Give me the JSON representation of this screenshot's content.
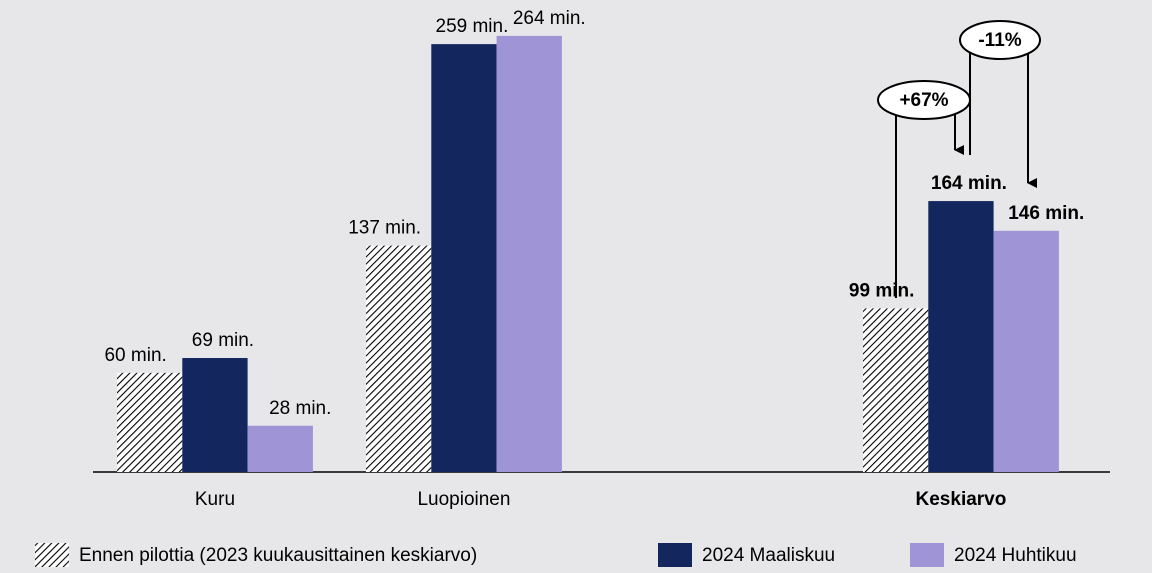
{
  "chart_data": {
    "type": "bar",
    "categories": [
      "Kuru",
      "Luopioinen",
      "Keskiarvo"
    ],
    "series": [
      {
        "name": "Ennen pilottia (2023 kuukausittainen keskiarvo)",
        "color": "#000000",
        "pattern": "hatch",
        "values": [
          60,
          137,
          99
        ],
        "value_labels": [
          "60 min.",
          "137 min.",
          "99 min."
        ]
      },
      {
        "name": "2024 Maaliskuu",
        "color": "#13265e",
        "values": [
          69,
          259,
          164
        ],
        "value_labels": [
          "69 min.",
          "259 min.",
          "164 min."
        ]
      },
      {
        "name": "2024 Huhtikuu",
        "color": "#9f95d6",
        "values": [
          28,
          264,
          146
        ],
        "value_labels": [
          "28 min.",
          "264 min.",
          "146 min."
        ]
      }
    ],
    "annotations": [
      "+67%",
      "-11%"
    ]
  }
}
